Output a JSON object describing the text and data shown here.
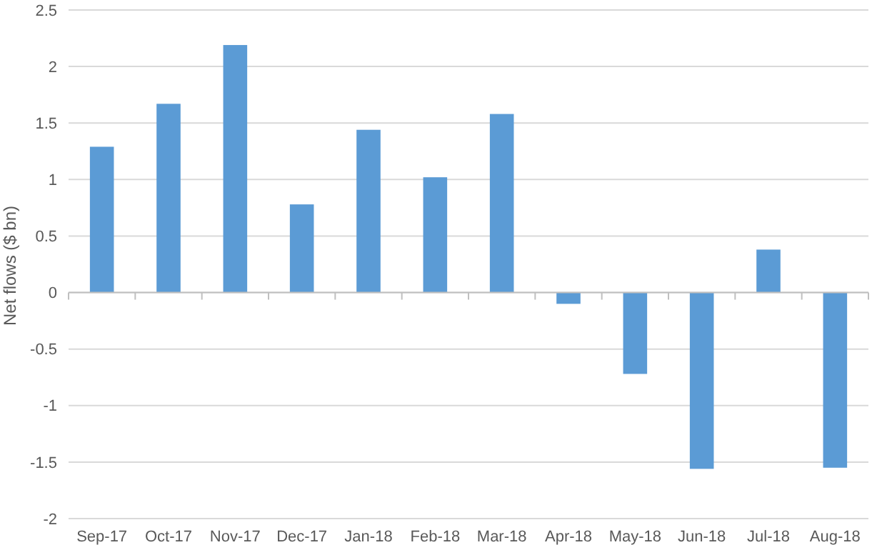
{
  "chart_data": {
    "type": "bar",
    "ylabel": "Net flows ($ bn)",
    "categories": [
      "Sep-17",
      "Oct-17",
      "Nov-17",
      "Dec-17",
      "Jan-18",
      "Feb-18",
      "Mar-18",
      "Apr-18",
      "May-18",
      "Jun-18",
      "Jul-18",
      "Aug-18"
    ],
    "values": [
      1.29,
      1.67,
      2.19,
      0.78,
      1.44,
      1.02,
      1.58,
      -0.1,
      -0.72,
      -1.56,
      0.38,
      -1.55
    ],
    "color": "#5b9bd5",
    "ylim": [
      -2,
      2.5
    ],
    "yticks": [
      -2,
      -1.5,
      -1,
      -0.5,
      0,
      0.5,
      1,
      1.5,
      2,
      2.5
    ],
    "grid": "y"
  }
}
